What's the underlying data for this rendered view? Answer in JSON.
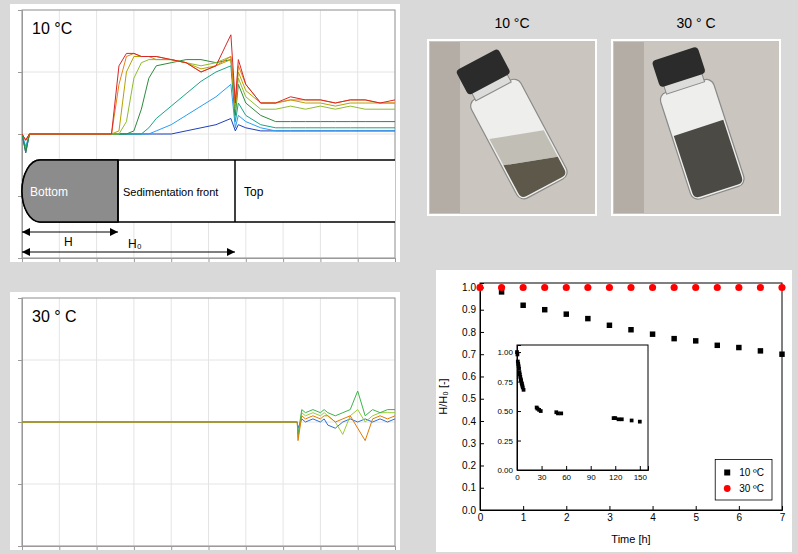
{
  "chart_data": [
    {
      "type": "line",
      "title": "10 °C",
      "x": [
        0,
        0.5,
        1,
        2,
        4,
        6,
        8,
        10,
        12,
        13,
        14,
        15,
        16,
        17,
        18,
        20,
        22,
        24,
        26,
        28,
        28.6,
        29,
        30,
        32,
        34,
        36,
        38,
        40,
        42,
        44,
        46,
        48,
        50
      ],
      "series": [
        {
          "color": "#1f3fbf",
          "values": [
            0,
            -3,
            0,
            0,
            0,
            0,
            0,
            0,
            0,
            0,
            0,
            0,
            0,
            0,
            0,
            0,
            0.5,
            1,
            1.5,
            2.5,
            0.5,
            1.5,
            1,
            0.5,
            0.5,
            0.5,
            0.5,
            0.5,
            0.5,
            0.5,
            0.5,
            0.5,
            0.5
          ]
        },
        {
          "color": "#2a9df4",
          "values": [
            0,
            -2,
            0,
            0,
            0,
            0,
            0,
            0,
            0,
            0,
            0,
            0,
            0,
            0,
            0.5,
            1.5,
            3,
            4.5,
            6,
            8,
            1,
            3,
            2,
            1,
            0.5,
            0.5,
            0.5,
            0.5,
            0.5,
            0.5,
            0.5,
            0.5,
            0.5
          ]
        },
        {
          "color": "#17a589",
          "values": [
            0,
            -2.5,
            0,
            0,
            0,
            0,
            0,
            0,
            0,
            0,
            0,
            0,
            0,
            1,
            2.5,
            4.5,
            6.5,
            8.5,
            10,
            11,
            2,
            5,
            3,
            1.5,
            1,
            1,
            1,
            1,
            1,
            1,
            1,
            1,
            1
          ]
        },
        {
          "color": "#2e8b3e",
          "values": [
            0,
            -3,
            0,
            0,
            0,
            0,
            0,
            0,
            0,
            0,
            0,
            0.5,
            4,
            9,
            11,
            11.5,
            12,
            12,
            11.5,
            12,
            3,
            8,
            5,
            3,
            2,
            2,
            2,
            2,
            2,
            2,
            2,
            2,
            2
          ]
        },
        {
          "color": "#8fbc2f",
          "values": [
            0,
            -1,
            0,
            0,
            0,
            0,
            0,
            0,
            0,
            0,
            2,
            9,
            11.5,
            12,
            12,
            12,
            11.5,
            11,
            11.5,
            12.5,
            4,
            9,
            6,
            4,
            4,
            4.5,
            4,
            4.5,
            4,
            4.5,
            4,
            4,
            4
          ]
        },
        {
          "color": "#b8a200",
          "values": [
            0,
            -1,
            0,
            0,
            0,
            0,
            0,
            0,
            0,
            0.5,
            10,
            12.5,
            12.5,
            12.5,
            12,
            12,
            11.5,
            10.5,
            11,
            12,
            4.5,
            10,
            7,
            5,
            5,
            5.5,
            5,
            5,
            4.5,
            5,
            5,
            5,
            5
          ]
        },
        {
          "color": "#e8801a",
          "values": [
            0,
            -1,
            0,
            0,
            0,
            0,
            0,
            0,
            0,
            8,
            12.5,
            13,
            12.5,
            12.5,
            12.5,
            12,
            11.5,
            10,
            11,
            12.5,
            5,
            11,
            8,
            5,
            5,
            5.5,
            5.5,
            5.5,
            5,
            5.5,
            5.5,
            5,
            5
          ]
        },
        {
          "color": "#d62728",
          "values": [
            0,
            -1,
            0,
            0,
            0,
            0,
            0,
            0,
            0,
            11,
            13,
            13,
            12.5,
            12.5,
            12.5,
            12,
            11.5,
            10,
            11,
            16,
            5,
            12,
            8,
            5,
            5,
            6,
            5.5,
            5.5,
            5,
            5.5,
            5.5,
            5,
            5.5
          ]
        }
      ],
      "xlim": [
        0,
        50
      ],
      "ylim": [
        -20,
        20
      ],
      "xticks": [
        0,
        5,
        10,
        15,
        20,
        25,
        30,
        35,
        40,
        45,
        50
      ],
      "yticks": [
        -20,
        -10,
        0,
        10,
        20
      ],
      "grid": true,
      "tick_labels": false
    },
    {
      "type": "line",
      "title": "30 ° C",
      "x": [
        0,
        36.9,
        37,
        37.5,
        38,
        39,
        40,
        40.5,
        41,
        42,
        43,
        44,
        45,
        46,
        47,
        48,
        49,
        50
      ],
      "series": [
        {
          "color": "#2a6fdb",
          "values": [
            0,
            0,
            -1,
            0.5,
            0,
            0.5,
            0,
            0.5,
            -0.5,
            -1,
            0,
            0.5,
            0,
            0.5,
            0,
            0.5,
            0,
            0.5
          ]
        },
        {
          "color": "#9acd32",
          "values": [
            0,
            0,
            -2.5,
            1.5,
            1,
            1.5,
            1,
            1.5,
            1,
            0,
            -2,
            1,
            2,
            0,
            1,
            1.5,
            1.5,
            1.5
          ]
        },
        {
          "color": "#3cb44b",
          "values": [
            0,
            0,
            -2,
            2,
            1.5,
            2,
            1.5,
            2,
            1.5,
            1,
            1.5,
            2,
            5,
            1,
            2,
            1.5,
            2,
            2
          ]
        },
        {
          "color": "#e07b00",
          "values": [
            0,
            0,
            -3,
            1,
            0.5,
            1,
            0.5,
            1,
            1,
            0,
            0.5,
            1,
            -1,
            -3,
            0.5,
            1,
            0.5,
            1
          ]
        }
      ],
      "xlim": [
        0,
        50
      ],
      "ylim": [
        -20,
        20
      ],
      "xticks": [
        0,
        5,
        10,
        15,
        20,
        25,
        30,
        35,
        40,
        45,
        50
      ],
      "yticks": [
        -20,
        -10,
        0,
        10,
        20
      ],
      "grid": true,
      "tick_labels": false
    },
    {
      "type": "scatter",
      "xlabel": "Time [h]",
      "ylabel": "H/H₀ [-]",
      "x": [
        0,
        0.5,
        1,
        1.5,
        2,
        2.5,
        3,
        3.5,
        4,
        4.5,
        5,
        5.5,
        6,
        6.5,
        7
      ],
      "series": [
        {
          "name": "10 ºC",
          "color": "#000000",
          "marker": "square",
          "values": [
            1,
            0.98,
            0.92,
            0.9,
            0.88,
            0.86,
            0.83,
            0.81,
            0.79,
            0.77,
            0.76,
            0.74,
            0.73,
            0.715,
            0.7
          ]
        },
        {
          "name": "30 ºC",
          "color": "#ff0000",
          "marker": "circle",
          "values": [
            1,
            1,
            1,
            1,
            1,
            1,
            1,
            1,
            1,
            1,
            1,
            1,
            1,
            1,
            1
          ]
        }
      ],
      "xlim": [
        0,
        7
      ],
      "ylim": [
        0,
        1.02
      ],
      "xticks": [
        0,
        1,
        2,
        3,
        4,
        5,
        6,
        7
      ],
      "yticks": [
        {
          "value": 0,
          "label": "0.0"
        },
        {
          "value": 0.1,
          "label": "0.1"
        },
        {
          "value": 0.2,
          "label": "0.2"
        },
        {
          "value": 0.3,
          "label": "0.3"
        },
        {
          "value": 0.4,
          "label": "0.4"
        },
        {
          "value": 0.5,
          "label": "0.5"
        },
        {
          "value": 0.6,
          "label": "0.6"
        },
        {
          "value": 0.7,
          "label": "0.7"
        },
        {
          "value": 0.8,
          "label": "0.8"
        },
        {
          "value": 0.9,
          "label": "0.9"
        },
        {
          "value": 1,
          "label": "1.0"
        }
      ],
      "grid": false,
      "legend": "bottom-right"
    },
    {
      "type": "scatter",
      "x": [
        0,
        0.5,
        1,
        1.5,
        2,
        2.5,
        3,
        3.5,
        4,
        4.5,
        5,
        5.5,
        6,
        6.5,
        7,
        8,
        24,
        25,
        27,
        29,
        48,
        50,
        54,
        118,
        120,
        124,
        128,
        140,
        150
      ],
      "series": [
        {
          "color": "#000000",
          "marker": "square",
          "values": [
            1,
            0.98,
            0.92,
            0.9,
            0.88,
            0.86,
            0.83,
            0.81,
            0.79,
            0.77,
            0.76,
            0.74,
            0.73,
            0.715,
            0.7,
            0.68,
            0.53,
            0.52,
            0.51,
            0.5,
            0.49,
            0.48,
            0.48,
            0.44,
            0.44,
            0.43,
            0.43,
            0.42,
            0.41
          ]
        }
      ],
      "xlim": [
        0,
        160
      ],
      "ylim": [
        0,
        1.06
      ],
      "xticks": [
        0,
        30,
        60,
        90,
        120,
        150
      ],
      "yticks": [
        {
          "value": 0,
          "label": "0.00"
        },
        {
          "value": 0.25,
          "label": "0.25"
        },
        {
          "value": 0.5,
          "label": "0.50"
        },
        {
          "value": 0.75,
          "label": "0.75"
        },
        {
          "value": 1,
          "label": "1.00"
        }
      ],
      "grid": false
    }
  ],
  "diagram": {
    "regions": [
      "Bottom",
      "Sedimentation front",
      "Top"
    ],
    "arrows": [
      "H",
      "H₀"
    ]
  },
  "photos": [
    {
      "label": "10 °C"
    },
    {
      "label": "30 ° C"
    }
  ]
}
